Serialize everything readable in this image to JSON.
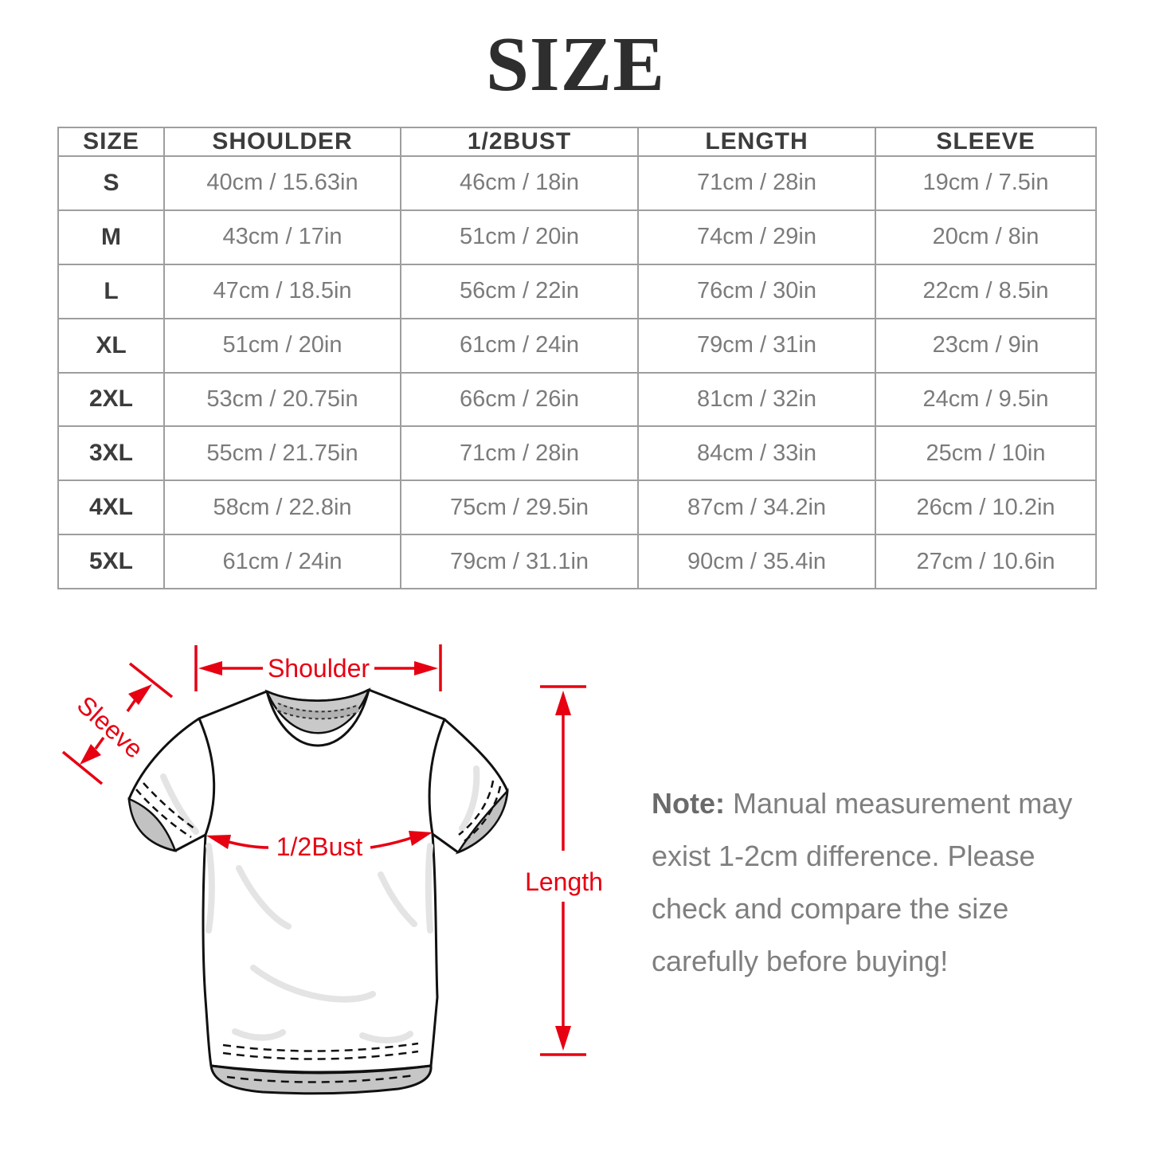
{
  "title": "SIZE",
  "table": {
    "headers": [
      "SIZE",
      "SHOULDER",
      "1/2BUST",
      "LENGTH",
      "SLEEVE"
    ],
    "rows": [
      [
        "S",
        "40cm / 15.63in",
        "46cm / 18in",
        "71cm / 28in",
        "19cm / 7.5in"
      ],
      [
        "M",
        "43cm / 17in",
        "51cm / 20in",
        "74cm / 29in",
        "20cm / 8in"
      ],
      [
        "L",
        "47cm / 18.5in",
        "56cm / 22in",
        "76cm / 30in",
        "22cm / 8.5in"
      ],
      [
        "XL",
        "51cm / 20in",
        "61cm / 24in",
        "79cm / 31in",
        "23cm / 9in"
      ],
      [
        "2XL",
        "53cm / 20.75in",
        "66cm / 26in",
        "81cm / 32in",
        "24cm / 9.5in"
      ],
      [
        "3XL",
        "55cm / 21.75in",
        "71cm / 28in",
        "84cm / 33in",
        "25cm / 10in"
      ],
      [
        "4XL",
        "58cm / 22.8in",
        "75cm / 29.5in",
        "87cm / 34.2in",
        "26cm / 10.2in"
      ],
      [
        "5XL",
        "61cm / 24in",
        "79cm / 31.1in",
        "90cm / 35.4in",
        "27cm / 10.6in"
      ]
    ]
  },
  "diagram": {
    "labels": {
      "shoulder": "Shoulder",
      "sleeve": "Sleeve",
      "bust": "1/2Bust",
      "length": "Length"
    },
    "accent_color": "#e60012"
  },
  "note": {
    "bold": "Note:",
    "lines": [
      "Manual measurement may",
      "exist 1-2cm difference. Please",
      "check and compare the size",
      "carefully before buying!"
    ]
  }
}
